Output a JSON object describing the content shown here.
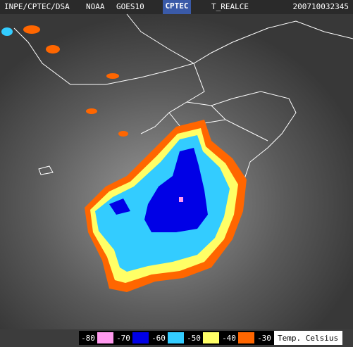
{
  "header": {
    "agency": "INPE/CPTEC/DSA",
    "operator": "NOAA",
    "satellite": "GOES10",
    "logo": "CPTEC",
    "product": "T_REALCE",
    "timestamp": "200710032345"
  },
  "legend": {
    "unit": "Temp. Celsius",
    "items": [
      {
        "value": -80,
        "color": "#ff99ee"
      },
      {
        "value": -70,
        "color": "#0000e6"
      },
      {
        "value": -60,
        "color": "#33ccff"
      },
      {
        "value": -50,
        "color": "#ffff66"
      },
      {
        "value": -40,
        "color": "#ff6600"
      },
      {
        "value": -30,
        "color": "#000000"
      }
    ]
  }
}
